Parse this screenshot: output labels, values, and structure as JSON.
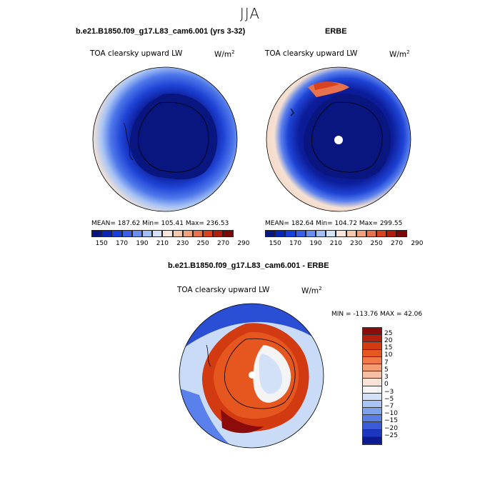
{
  "title": "JJA",
  "panels": {
    "model": {
      "header": "b.e21.B1850.f09_g17.L83_cam6.001 (yrs 3-32)",
      "variable": "TOA clearsky upward LW",
      "units": "W/m",
      "units_exp": "2",
      "stats": "MEAN= 187.62   Min= 105.41   Max= 236.53"
    },
    "obs": {
      "header": "ERBE",
      "variable": "TOA clearsky upward LW",
      "units": "W/m",
      "units_exp": "2",
      "stats": "MEAN= 182.64   Min= 104.72   Max= 299.55"
    },
    "diff": {
      "header": "b.e21.B1850.f09_g17.L83_cam6.001 - ERBE",
      "variable": "TOA clearsky upward LW",
      "units": "W/m",
      "units_exp": "2",
      "stats": "MIN = -113.76 MAX =  42.06"
    }
  },
  "colorbar_abs": {
    "ticks": [
      "150",
      "170",
      "190",
      "210",
      "230",
      "250",
      "270",
      "290"
    ],
    "colors": [
      "#0a1680",
      "#0b25b8",
      "#1a3fd8",
      "#3a5ee6",
      "#6a8ef0",
      "#a2bff6",
      "#d4e3fa",
      "#f8e6dc",
      "#f5c9b0",
      "#f2a07e",
      "#e8714e",
      "#d8431f",
      "#b01d0d",
      "#7a0808"
    ]
  },
  "colorbar_diff": {
    "labels": [
      "25",
      "20",
      "15",
      "10",
      "7",
      "5",
      "3",
      "0",
      "−3",
      "−5",
      "−7",
      "−10",
      "−15",
      "−20",
      "−25"
    ],
    "colors": [
      "#8c0b0b",
      "#b4200d",
      "#d23a12",
      "#e6561f",
      "#ef7a48",
      "#f39b74",
      "#f6bfa4",
      "#fae3d6",
      "#f4f4f4",
      "#d2e1f7",
      "#a8c4f2",
      "#7ea2ec",
      "#5a7fe4",
      "#3a5ad6",
      "#1d36c0",
      "#0c1a92"
    ]
  }
}
